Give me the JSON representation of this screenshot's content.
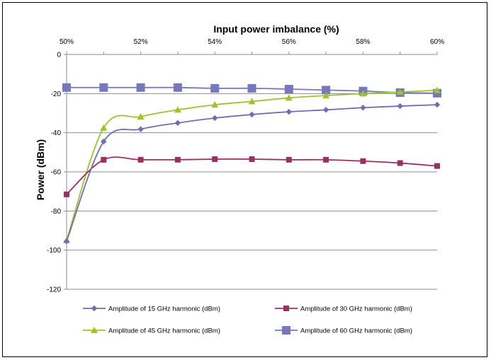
{
  "chart_data": {
    "type": "line",
    "title": "",
    "xlabel": "Input power imbalance (%)",
    "ylabel": "Power (dBm)",
    "x_axis_position": "top",
    "x": [
      50,
      51,
      52,
      53,
      54,
      55,
      56,
      57,
      58,
      59,
      60
    ],
    "x_ticks": [
      50,
      52,
      54,
      56,
      58,
      60
    ],
    "x_tick_labels": [
      "50%",
      "52%",
      "54%",
      "56%",
      "58%",
      "60%"
    ],
    "xlim": [
      50,
      60
    ],
    "ylim": [
      -120,
      0
    ],
    "y_ticks": [
      0,
      -20,
      -40,
      -60,
      -80,
      -100,
      -120
    ],
    "y_tick_labels": [
      "0",
      "-20",
      "-40",
      "-60",
      "-80",
      "-100",
      "-120"
    ],
    "grid": "horizontal",
    "legend_position": "bottom",
    "series": [
      {
        "name": "Amplitude of 15 GHz harmonic (dBm)",
        "color": "#6f6fb0",
        "marker": "diamond",
        "values": [
          -95.5,
          -44.5,
          -38.2,
          -35,
          -32.5,
          -30.7,
          -29.3,
          -28.3,
          -27.2,
          -26.4,
          -25.7
        ]
      },
      {
        "name": "Amplitude of 30 GHz harmonic (dBm)",
        "color": "#9b2f63",
        "marker": "square",
        "values": [
          -71.5,
          -53.8,
          -53.8,
          -53.8,
          -53.5,
          -53.5,
          -53.8,
          -53.8,
          -54.5,
          -55.5,
          -57
        ]
      },
      {
        "name": "Amplitude of 45 GHz harmonic (dBm)",
        "color": "#9bc42f",
        "marker": "triangle",
        "values": [
          -95,
          -37.5,
          -31.8,
          -28.3,
          -25.7,
          -24,
          -22.2,
          -21,
          -20,
          -19.2,
          -18.3
        ]
      },
      {
        "name": "Amplitude of 60 GHz harmonic (dBm)",
        "color": "#7777bb",
        "marker": "square-large",
        "values": [
          -16.9,
          -16.9,
          -16.9,
          -16.9,
          -17.3,
          -17.3,
          -17.7,
          -18.2,
          -18.7,
          -19.5,
          -19.8
        ]
      }
    ]
  }
}
